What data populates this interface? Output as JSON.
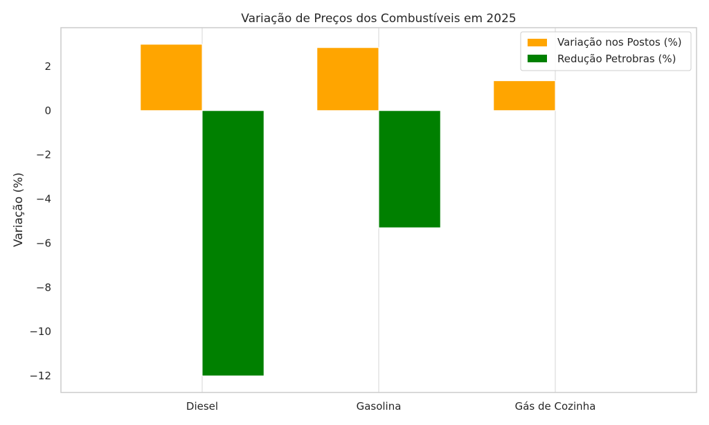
{
  "chart_data": {
    "type": "bar",
    "title": "Variação de Preços dos Combustíveis em 2025",
    "xlabel": "",
    "ylabel": "Variação (%)",
    "categories": [
      "Diesel",
      "Gasolina",
      "Gás de Cozinha"
    ],
    "series": [
      {
        "name": "Variação nos Postos (%)",
        "color": "#ffa500",
        "values": [
          3.0,
          2.85,
          1.35
        ]
      },
      {
        "name": "Redução Petrobras (%)",
        "color": "#008000",
        "values": [
          -12.0,
          -5.3,
          null
        ]
      }
    ],
    "ylim": [
      -12.75,
      3.75
    ],
    "yticks": [
      2,
      0,
      -2,
      -4,
      -6,
      -8,
      -10,
      -12
    ],
    "ytick_labels": [
      "2",
      "0",
      "−2",
      "−4",
      "−6",
      "−8",
      "−10",
      "−12"
    ],
    "grid": true,
    "legend_position": "top-right"
  }
}
